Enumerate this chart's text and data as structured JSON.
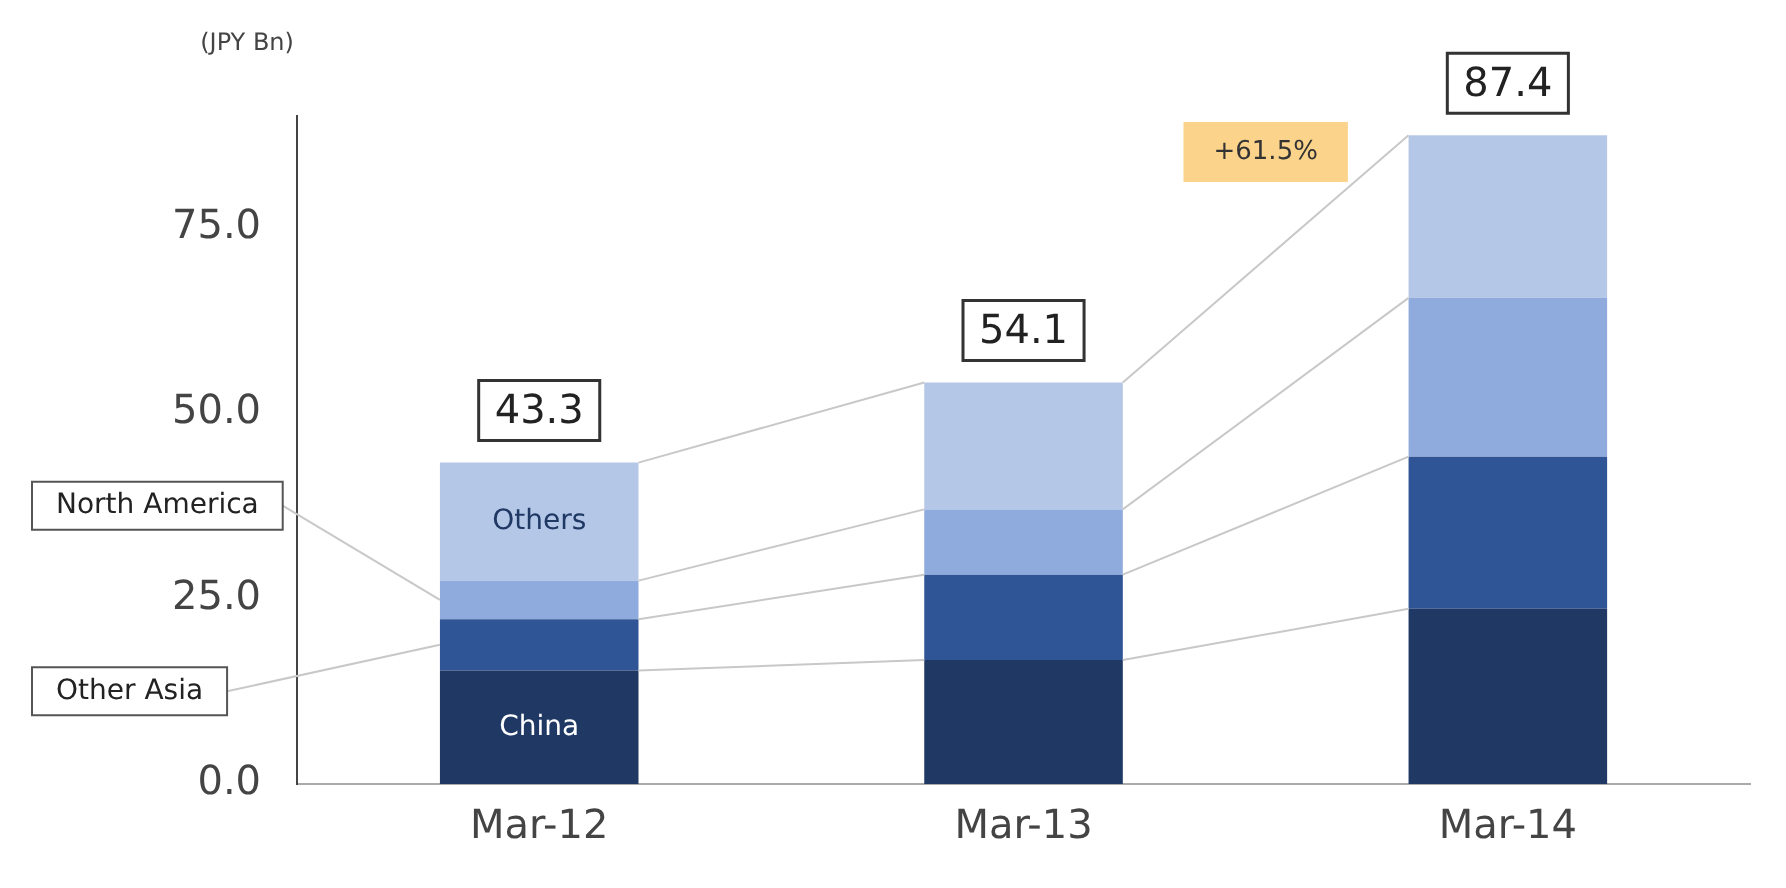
{
  "chart_data": {
    "type": "bar",
    "stacked": true,
    "ylabel": "(JPY Bn)",
    "categories": [
      "Mar-12",
      "Mar-13",
      "Mar-14"
    ],
    "series": [
      {
        "name": "China",
        "color": "#1f3864",
        "values": [
          15.3,
          16.7,
          23.6
        ]
      },
      {
        "name": "Other Asia",
        "color": "#2f5597",
        "values": [
          6.9,
          11.5,
          20.5
        ]
      },
      {
        "name": "North America",
        "color": "#8faadc",
        "values": [
          5.2,
          8.8,
          21.4
        ]
      },
      {
        "name": "Others",
        "color": "#b4c7e7",
        "values": [
          15.9,
          17.1,
          21.9
        ]
      }
    ],
    "totals": [
      "43.3",
      "54.1",
      "87.4"
    ],
    "annotations": [
      "+61.5%"
    ],
    "ylim": [
      0,
      90
    ],
    "yticks": [
      {
        "value": 0,
        "label": "0.0"
      },
      {
        "value": 25,
        "label": "25.0"
      },
      {
        "value": 50,
        "label": "50.0"
      },
      {
        "value": 75,
        "label": "75.0"
      }
    ],
    "grid": false,
    "legend": false
  }
}
